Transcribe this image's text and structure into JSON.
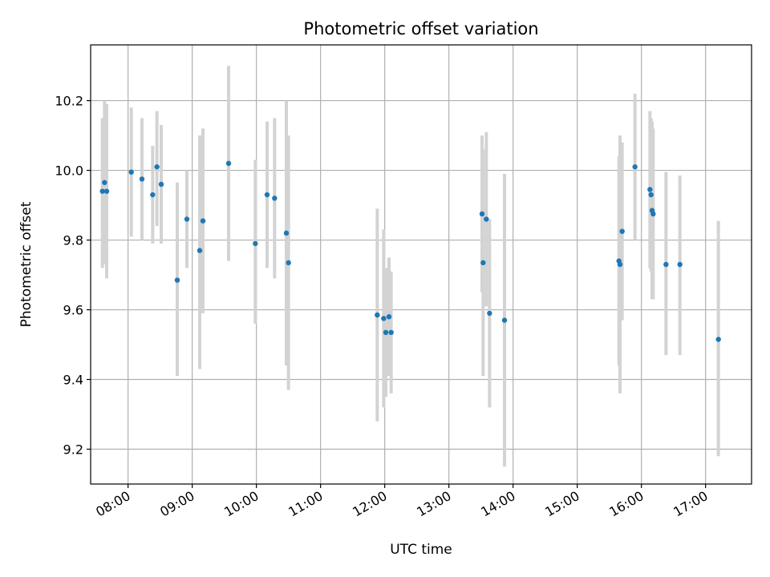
{
  "chart_data": {
    "type": "scatter",
    "title": "Photometric offset variation",
    "xlabel": "UTC time",
    "ylabel": "Photometric offset",
    "xlim": [
      "07:25",
      "17:43"
    ],
    "ylim": [
      9.1,
      10.36
    ],
    "x_ticks": [
      "08:00",
      "09:00",
      "10:00",
      "11:00",
      "12:00",
      "13:00",
      "14:00",
      "15:00",
      "16:00",
      "17:00"
    ],
    "y_ticks": [
      "9.2",
      "9.4",
      "9.6",
      "9.8",
      "10.0",
      "10.2"
    ],
    "grid": true,
    "colors": {
      "marker": "#1f77b4",
      "errorbar": "#d3d3d3",
      "grid": "#b0b0b0"
    },
    "points": [
      {
        "x": "07:36",
        "y": 9.94,
        "yerr_low": 9.72,
        "yerr_high": 10.15
      },
      {
        "x": "07:38",
        "y": 9.965,
        "yerr_low": 9.73,
        "yerr_high": 10.2
      },
      {
        "x": "07:40",
        "y": 9.94,
        "yerr_low": 9.69,
        "yerr_high": 10.19
      },
      {
        "x": "08:03",
        "y": 9.995,
        "yerr_low": 9.81,
        "yerr_high": 10.18
      },
      {
        "x": "08:13",
        "y": 9.975,
        "yerr_low": 9.8,
        "yerr_high": 10.15
      },
      {
        "x": "08:23",
        "y": 9.93,
        "yerr_low": 9.79,
        "yerr_high": 10.07
      },
      {
        "x": "08:27",
        "y": 10.01,
        "yerr_low": 9.84,
        "yerr_high": 10.17
      },
      {
        "x": "08:31",
        "y": 9.96,
        "yerr_low": 9.79,
        "yerr_high": 10.13
      },
      {
        "x": "08:46",
        "y": 9.685,
        "yerr_low": 9.41,
        "yerr_high": 9.965
      },
      {
        "x": "08:55",
        "y": 9.86,
        "yerr_low": 9.72,
        "yerr_high": 10.0
      },
      {
        "x": "09:07",
        "y": 9.77,
        "yerr_low": 9.43,
        "yerr_high": 10.1
      },
      {
        "x": "09:10",
        "y": 9.855,
        "yerr_low": 9.59,
        "yerr_high": 10.12
      },
      {
        "x": "09:34",
        "y": 10.02,
        "yerr_low": 9.74,
        "yerr_high": 10.3
      },
      {
        "x": "09:59",
        "y": 9.79,
        "yerr_low": 9.56,
        "yerr_high": 10.03
      },
      {
        "x": "10:10",
        "y": 9.93,
        "yerr_low": 9.72,
        "yerr_high": 10.14
      },
      {
        "x": "10:17",
        "y": 9.92,
        "yerr_low": 9.69,
        "yerr_high": 10.15
      },
      {
        "x": "10:28",
        "y": 9.82,
        "yerr_low": 9.44,
        "yerr_high": 10.2
      },
      {
        "x": "10:30",
        "y": 9.735,
        "yerr_low": 9.37,
        "yerr_high": 10.1
      },
      {
        "x": "11:53",
        "y": 9.585,
        "yerr_low": 9.28,
        "yerr_high": 9.89
      },
      {
        "x": "11:59",
        "y": 9.575,
        "yerr_low": 9.32,
        "yerr_high": 9.83
      },
      {
        "x": "12:01",
        "y": 9.535,
        "yerr_low": 9.35,
        "yerr_high": 9.72
      },
      {
        "x": "12:04",
        "y": 9.58,
        "yerr_low": 9.41,
        "yerr_high": 9.75
      },
      {
        "x": "12:06",
        "y": 9.535,
        "yerr_low": 9.36,
        "yerr_high": 9.71
      },
      {
        "x": "13:31",
        "y": 9.875,
        "yerr_low": 9.65,
        "yerr_high": 10.1
      },
      {
        "x": "13:32",
        "y": 9.735,
        "yerr_low": 9.41,
        "yerr_high": 10.06
      },
      {
        "x": "13:35",
        "y": 9.86,
        "yerr_low": 9.61,
        "yerr_high": 10.11
      },
      {
        "x": "13:38",
        "y": 9.59,
        "yerr_low": 9.32,
        "yerr_high": 9.86
      },
      {
        "x": "13:52",
        "y": 9.57,
        "yerr_low": 9.15,
        "yerr_high": 9.99
      },
      {
        "x": "15:39",
        "y": 9.74,
        "yerr_low": 9.44,
        "yerr_high": 10.04
      },
      {
        "x": "15:40",
        "y": 9.73,
        "yerr_low": 9.36,
        "yerr_high": 10.1
      },
      {
        "x": "15:42",
        "y": 9.825,
        "yerr_low": 9.57,
        "yerr_high": 10.08
      },
      {
        "x": "15:54",
        "y": 10.01,
        "yerr_low": 9.8,
        "yerr_high": 10.22
      },
      {
        "x": "16:08",
        "y": 9.945,
        "yerr_low": 9.72,
        "yerr_high": 10.17
      },
      {
        "x": "16:09",
        "y": 9.93,
        "yerr_low": 9.71,
        "yerr_high": 10.15
      },
      {
        "x": "16:10",
        "y": 9.885,
        "yerr_low": 9.63,
        "yerr_high": 10.14
      },
      {
        "x": "16:11",
        "y": 9.875,
        "yerr_low": 9.63,
        "yerr_high": 10.12
      },
      {
        "x": "16:23",
        "y": 9.73,
        "yerr_low": 9.47,
        "yerr_high": 9.995
      },
      {
        "x": "16:36",
        "y": 9.73,
        "yerr_low": 9.47,
        "yerr_high": 9.985
      },
      {
        "x": "17:12",
        "y": 9.515,
        "yerr_low": 9.18,
        "yerr_high": 9.855
      }
    ]
  }
}
